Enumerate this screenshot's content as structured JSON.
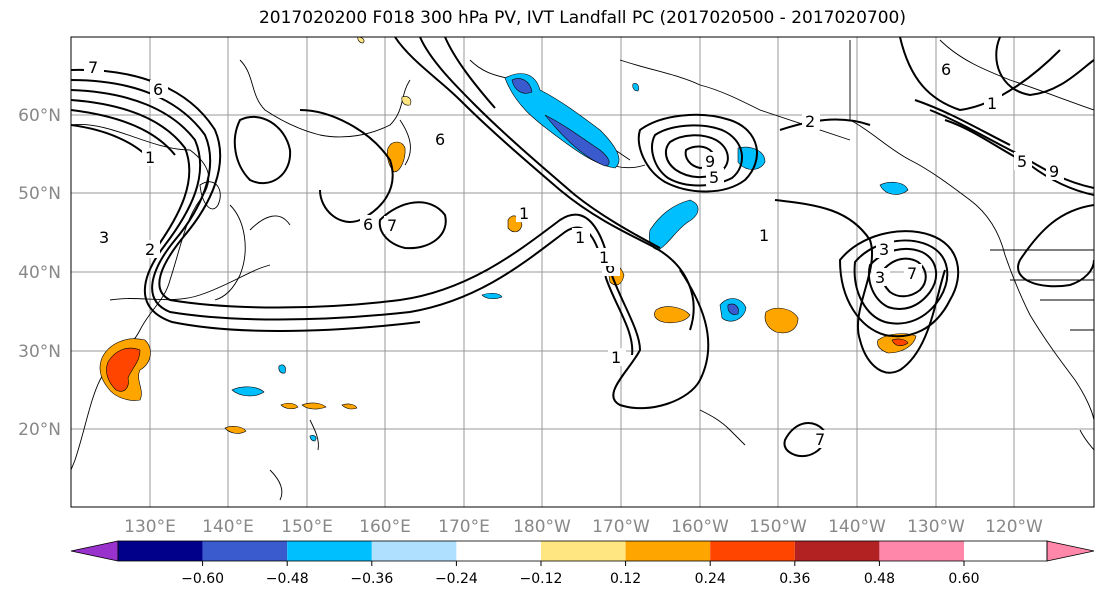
{
  "title": "2017020200 F018 300 hPa PV, IVT Landfall PC (2017020500 - 2017020700)",
  "lat_labels": [
    "60°N",
    "50°N",
    "40°N",
    "30°N",
    "20°N"
  ],
  "lon_labels": [
    "130°E",
    "140°E",
    "150°E",
    "160°E",
    "170°E",
    "180°W",
    "170°W",
    "160°W",
    "150°W",
    "140°W",
    "130°W",
    "120°W"
  ],
  "colorbar": {
    "colors": [
      "#9932cc",
      "#00008b",
      "#3a5bcd",
      "#00bfff",
      "#b0e0ff",
      "#ffffff",
      "#ffe680",
      "#ffa500",
      "#ff4500",
      "#b22222",
      "#ff88aa"
    ],
    "tick_labels": [
      "−0.60",
      "−0.48",
      "−0.36",
      "−0.24",
      "−0.12",
      "0.12",
      "0.24",
      "0.36",
      "0.48",
      "0.60"
    ]
  },
  "contour_labels": [
    "7",
    "6",
    "1",
    "3",
    "2",
    "6",
    "1",
    "6",
    "7",
    "1",
    "6",
    "9",
    "5",
    "1",
    "2",
    "3",
    "5",
    "3",
    "7",
    "9",
    "1",
    "1",
    "1",
    "7",
    "6"
  ]
}
